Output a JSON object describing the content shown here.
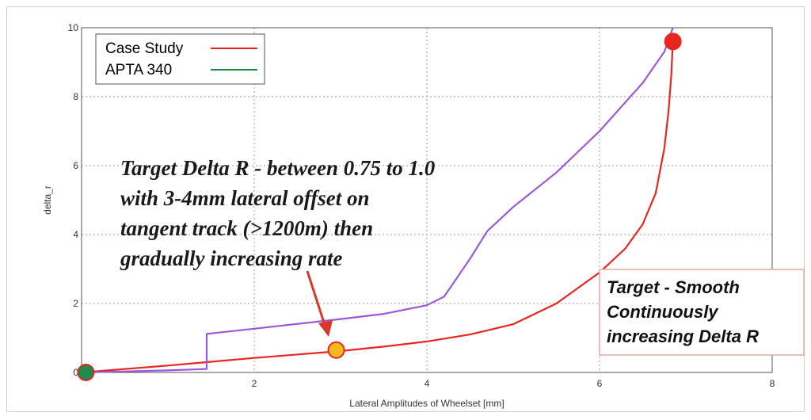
{
  "chart_data": {
    "type": "line",
    "xlabel": "Lateral Amplitudes of Wheelset [mm]",
    "ylabel": "delta_r",
    "xlim": [
      0,
      8
    ],
    "ylim": [
      0,
      10
    ],
    "xticks": [
      "2",
      "4",
      "6",
      "8"
    ],
    "yticks": [
      "0",
      "2",
      "4",
      "6",
      "8",
      "10"
    ],
    "grid": true,
    "legend_position": "top-left",
    "legend": [
      {
        "label": "Case Study",
        "color": "#e8261f"
      },
      {
        "label": "APTA 340",
        "color": "#1f8a4c"
      }
    ],
    "series": [
      {
        "name": "Case Study",
        "color": "#e8261f",
        "points": [
          [
            0.0,
            0.0
          ],
          [
            1.0,
            0.2
          ],
          [
            2.0,
            0.42
          ],
          [
            3.0,
            0.62
          ],
          [
            3.5,
            0.75
          ],
          [
            4.0,
            0.9
          ],
          [
            4.5,
            1.1
          ],
          [
            5.0,
            1.4
          ],
          [
            5.5,
            2.0
          ],
          [
            6.0,
            2.9
          ],
          [
            6.3,
            3.6
          ],
          [
            6.5,
            4.3
          ],
          [
            6.65,
            5.2
          ],
          [
            6.75,
            6.5
          ],
          [
            6.8,
            7.6
          ],
          [
            6.83,
            8.6
          ],
          [
            6.85,
            9.6
          ]
        ]
      },
      {
        "name": "",
        "color": "#9b59d9",
        "points": [
          [
            0.0,
            0.0
          ],
          [
            0.5,
            0.03
          ],
          [
            1.0,
            0.06
          ],
          [
            1.45,
            0.1
          ],
          [
            1.45,
            1.12
          ],
          [
            2.0,
            1.27
          ],
          [
            3.0,
            1.55
          ],
          [
            3.5,
            1.7
          ],
          [
            4.0,
            1.95
          ],
          [
            4.2,
            2.2
          ],
          [
            4.5,
            3.3
          ],
          [
            4.7,
            4.1
          ],
          [
            5.0,
            4.8
          ],
          [
            5.5,
            5.8
          ],
          [
            6.0,
            7.0
          ],
          [
            6.5,
            8.4
          ],
          [
            6.75,
            9.3
          ],
          [
            6.85,
            10.0
          ]
        ]
      }
    ],
    "markers": [
      {
        "x": 0.05,
        "y": 0.0,
        "fill": "#1f8a4c",
        "stroke": "#e8261f"
      },
      {
        "x": 2.95,
        "y": 0.65,
        "fill": "#f5b921",
        "stroke": "#e8261f"
      },
      {
        "x": 6.85,
        "y": 9.6,
        "fill": "#e8261f",
        "stroke": "#e8261f"
      }
    ],
    "annotation_lines": [
      "Target Delta R - between 0.75 to 1.0",
      "with 3-4mm lateral offset on",
      "tangent track (>1200m) then",
      "gradually increasing rate"
    ],
    "annotation_box_lines": [
      "Target - Smooth",
      "Continuously",
      "increasing Delta R"
    ]
  }
}
